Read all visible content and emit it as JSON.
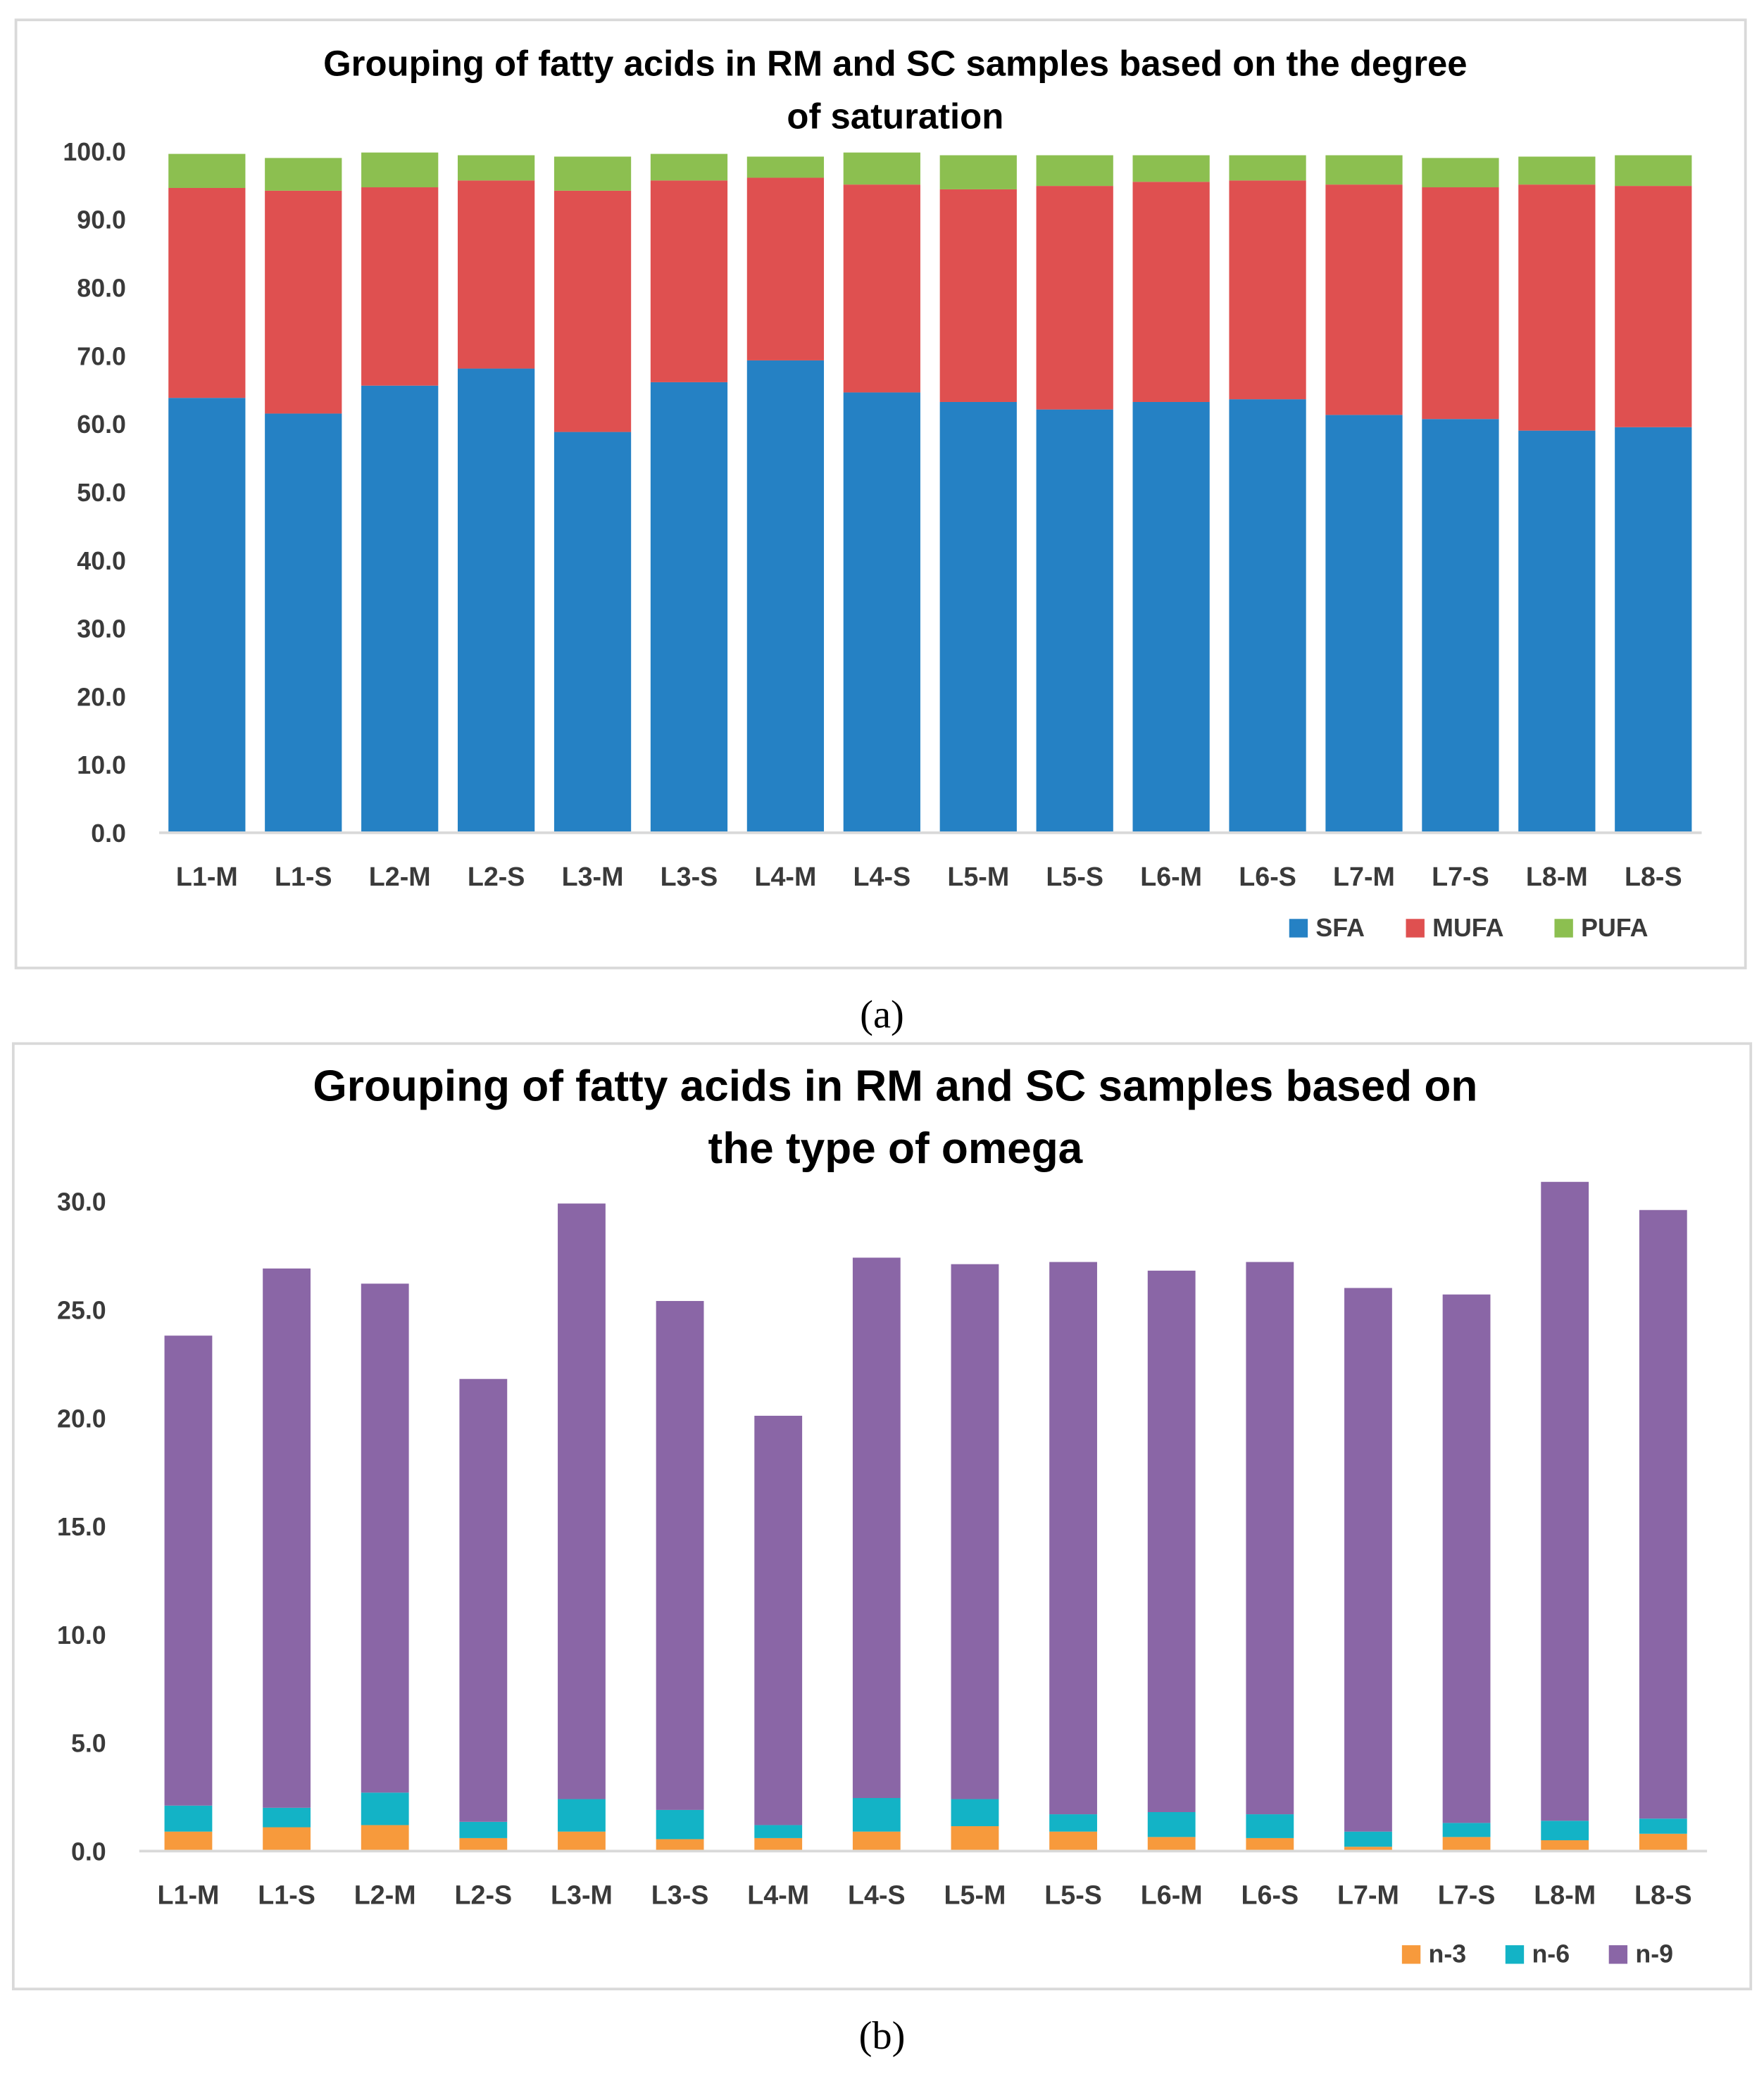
{
  "chart_data": [
    {
      "type": "bar",
      "stacked": true,
      "title": "Grouping of fatty acids in RM and SC samples  based on the degree of saturation",
      "title_lines": [
        "Grouping of fatty acids in RM and SC samples  based on the degree",
        "of saturation"
      ],
      "caption": "(a)",
      "categories": [
        "L1-M",
        "L1-S",
        "L2-M",
        "L2-S",
        "L3-M",
        "L3-S",
        "L4-M",
        "L4-S",
        "L5-M",
        "L5-S",
        "L6-M",
        "L6-S",
        "L7-M",
        "L7-S",
        "L8-M",
        "L8-S"
      ],
      "ylim": [
        0,
        100
      ],
      "yticks": [
        "0.0",
        "10.0",
        "20.0",
        "30.0",
        "40.0",
        "50.0",
        "60.0",
        "70.0",
        "80.0",
        "90.0",
        "100.0"
      ],
      "legend_position": "bottom-right",
      "series": [
        {
          "name": "SFA",
          "color": "#2581c4",
          "values": [
            63.8,
            61.5,
            65.6,
            68.1,
            58.8,
            66.1,
            69.3,
            64.6,
            63.2,
            62.1,
            63.2,
            63.6,
            61.3,
            60.7,
            59.0,
            59.5
          ]
        },
        {
          "name": "MUFA",
          "color": "#df5050",
          "values": [
            30.8,
            32.7,
            29.1,
            27.6,
            35.4,
            29.6,
            26.8,
            30.5,
            31.2,
            32.8,
            32.3,
            32.1,
            33.8,
            34.0,
            36.1,
            35.4
          ]
        },
        {
          "name": "PUFA",
          "color": "#8cbf50",
          "values": [
            5.0,
            4.8,
            5.1,
            3.7,
            5.0,
            3.9,
            3.1,
            4.7,
            5.0,
            4.5,
            3.9,
            3.7,
            4.3,
            4.3,
            4.1,
            4.5
          ]
        }
      ]
    },
    {
      "type": "bar",
      "stacked": true,
      "title": "Grouping of fatty acids in RM and SC samples  based on the type of omega",
      "title_lines": [
        "Grouping of fatty acids in RM and SC samples  based on",
        "the type of omega"
      ],
      "caption": "(b)",
      "categories": [
        "L1-M",
        "L1-S",
        "L2-M",
        "L2-S",
        "L3-M",
        "L3-S",
        "L4-M",
        "L4-S",
        "L5-M",
        "L5-S",
        "L6-M",
        "L6-S",
        "L7-M",
        "L7-S",
        "L8-M",
        "L8-S"
      ],
      "ylim": [
        0,
        30
      ],
      "yticks": [
        "0.0",
        "5.0",
        "10.0",
        "15.0",
        "20.0",
        "25.0",
        "30.0"
      ],
      "legend_position": "bottom-right",
      "series": [
        {
          "name": "n-3",
          "color": "#f79a3c",
          "values": [
            0.9,
            1.1,
            1.2,
            0.6,
            0.9,
            0.55,
            0.6,
            0.9,
            1.15,
            0.9,
            0.65,
            0.6,
            0.2,
            0.65,
            0.5,
            0.8
          ]
        },
        {
          "name": "n-6",
          "color": "#13b3c6",
          "values": [
            1.2,
            0.9,
            1.5,
            0.75,
            1.5,
            1.35,
            0.6,
            1.55,
            1.25,
            0.8,
            1.15,
            1.1,
            0.7,
            0.65,
            0.9,
            0.7
          ]
        },
        {
          "name": "n-9",
          "color": "#8a66a6",
          "values": [
            21.7,
            24.9,
            23.5,
            20.45,
            27.5,
            23.5,
            18.9,
            24.95,
            24.7,
            25.5,
            25.0,
            25.5,
            25.1,
            24.4,
            29.5,
            28.1
          ]
        }
      ]
    }
  ]
}
